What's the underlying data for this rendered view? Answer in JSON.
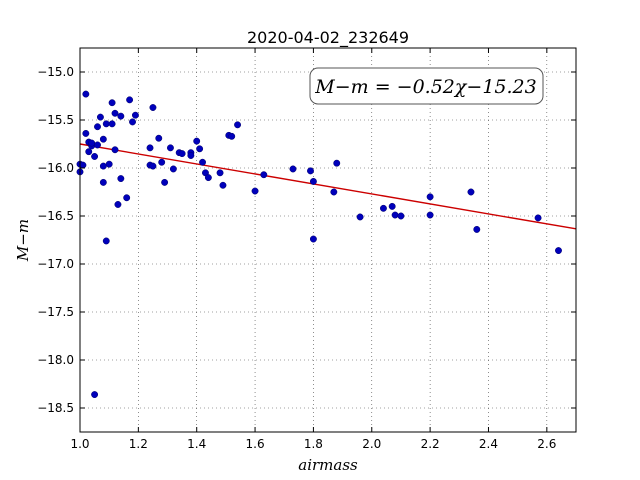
{
  "chart_data": {
    "type": "scatter",
    "title": "2020-04-02_232649",
    "xlabel": "airmass",
    "ylabel": "M−m",
    "xlim": [
      1.0,
      2.7
    ],
    "ylim": [
      -18.75,
      -14.75
    ],
    "y_inverted": true,
    "grid": true,
    "x_ticks": [
      "1.0",
      "1.2",
      "1.4",
      "1.6",
      "1.8",
      "2.0",
      "2.2",
      "2.4",
      "2.6"
    ],
    "y_ticks": [
      "−15.0",
      "−15.5",
      "−16.0",
      "−16.5",
      "−17.0",
      "−17.5",
      "−18.0",
      "−18.5"
    ],
    "x_tick_values": [
      1.0,
      1.2,
      1.4,
      1.6,
      1.8,
      2.0,
      2.2,
      2.4,
      2.6
    ],
    "y_tick_values": [
      -15.0,
      -15.5,
      -16.0,
      -16.5,
      -17.0,
      -17.5,
      -18.0,
      -18.5
    ],
    "annotation": "M−m = −0.52χ−15.23",
    "fit": {
      "slope": -0.52,
      "intercept": -15.23,
      "color": "#cc0000",
      "x_range": [
        1.0,
        2.7
      ]
    },
    "point_color": "#0000bb",
    "points": [
      [
        1.0,
        -15.96
      ],
      [
        1.0,
        -16.04
      ],
      [
        1.01,
        -15.97
      ],
      [
        1.02,
        -15.23
      ],
      [
        1.02,
        -15.64
      ],
      [
        1.03,
        -15.73
      ],
      [
        1.03,
        -15.83
      ],
      [
        1.04,
        -15.77
      ],
      [
        1.04,
        -15.74
      ],
      [
        1.05,
        -15.88
      ],
      [
        1.05,
        -18.36
      ],
      [
        1.06,
        -15.57
      ],
      [
        1.06,
        -15.76
      ],
      [
        1.07,
        -15.47
      ],
      [
        1.08,
        -15.7
      ],
      [
        1.08,
        -15.98
      ],
      [
        1.08,
        -16.15
      ],
      [
        1.09,
        -15.54
      ],
      [
        1.09,
        -16.76
      ],
      [
        1.1,
        -15.96
      ],
      [
        1.11,
        -15.32
      ],
      [
        1.11,
        -15.54
      ],
      [
        1.12,
        -15.43
      ],
      [
        1.12,
        -15.81
      ],
      [
        1.13,
        -16.38
      ],
      [
        1.14,
        -15.46
      ],
      [
        1.14,
        -16.11
      ],
      [
        1.16,
        -16.31
      ],
      [
        1.17,
        -15.29
      ],
      [
        1.18,
        -15.52
      ],
      [
        1.19,
        -15.45
      ],
      [
        1.24,
        -15.79
      ],
      [
        1.24,
        -15.97
      ],
      [
        1.25,
        -15.37
      ],
      [
        1.25,
        -15.98
      ],
      [
        1.27,
        -15.69
      ],
      [
        1.28,
        -15.94
      ],
      [
        1.29,
        -16.15
      ],
      [
        1.31,
        -15.79
      ],
      [
        1.32,
        -16.01
      ],
      [
        1.34,
        -15.84
      ],
      [
        1.35,
        -15.85
      ],
      [
        1.38,
        -15.84
      ],
      [
        1.38,
        -15.87
      ],
      [
        1.4,
        -15.72
      ],
      [
        1.41,
        -15.8
      ],
      [
        1.42,
        -15.94
      ],
      [
        1.43,
        -16.05
      ],
      [
        1.44,
        -16.1
      ],
      [
        1.48,
        -16.05
      ],
      [
        1.49,
        -16.18
      ],
      [
        1.51,
        -15.66
      ],
      [
        1.52,
        -15.67
      ],
      [
        1.54,
        -15.55
      ],
      [
        1.6,
        -16.24
      ],
      [
        1.63,
        -16.07
      ],
      [
        1.73,
        -16.01
      ],
      [
        1.79,
        -16.03
      ],
      [
        1.8,
        -16.14
      ],
      [
        1.8,
        -16.74
      ],
      [
        1.87,
        -16.25
      ],
      [
        1.88,
        -15.95
      ],
      [
        1.96,
        -16.51
      ],
      [
        2.04,
        -16.42
      ],
      [
        2.07,
        -16.4
      ],
      [
        2.08,
        -16.49
      ],
      [
        2.1,
        -16.5
      ],
      [
        2.2,
        -16.3
      ],
      [
        2.2,
        -16.49
      ],
      [
        2.34,
        -16.25
      ],
      [
        2.36,
        -16.64
      ],
      [
        2.57,
        -16.52
      ],
      [
        2.64,
        -16.86
      ]
    ]
  }
}
